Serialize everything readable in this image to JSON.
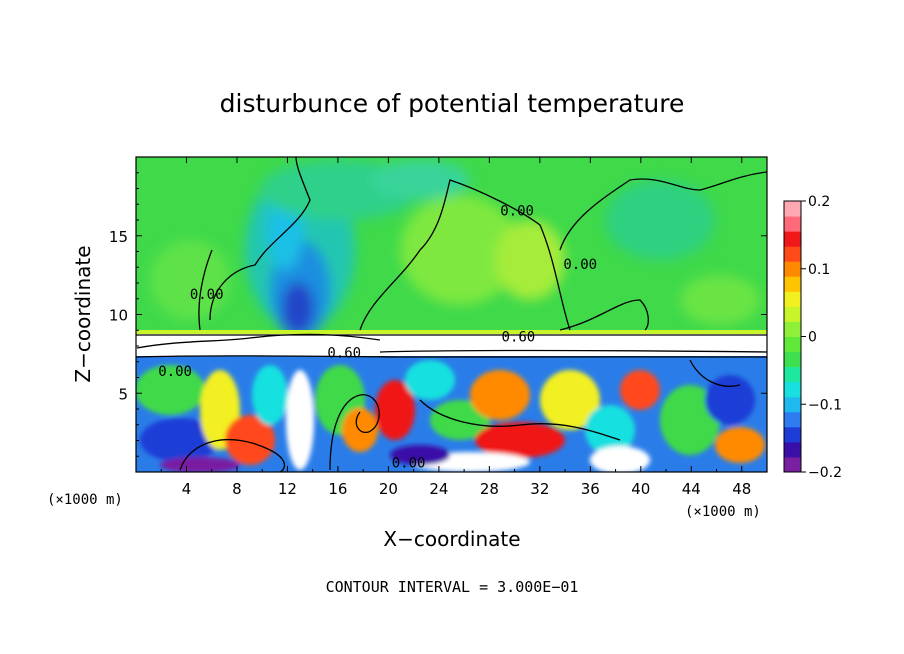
{
  "chart_data": {
    "type": "heatmap",
    "title": "disturbunce of potential temperature",
    "xlabel": "X−coordinate",
    "ylabel": "Z−coordinate",
    "x_unit": "(×1000 m)",
    "x_unit_right": "(×1000 m)",
    "xlim": [
      0,
      50
    ],
    "ylim": [
      0,
      20
    ],
    "xticks": [
      "4",
      "8",
      "12",
      "16",
      "20",
      "24",
      "28",
      "32",
      "36",
      "40",
      "44",
      "48"
    ],
    "xtick_values": [
      4,
      8,
      12,
      16,
      20,
      24,
      28,
      32,
      36,
      40,
      44,
      48
    ],
    "yticks": [
      "5",
      "10",
      "15"
    ],
    "ytick_values": [
      5,
      10,
      15
    ],
    "colorbar": {
      "ticks": [
        "0.2",
        "0.1",
        "0",
        "−0.1",
        "−0.2"
      ],
      "tick_values": [
        0.2,
        0.1,
        0,
        -0.1,
        -0.2
      ],
      "range": [
        -0.2,
        0.2
      ],
      "colors": [
        "#7a1fa2",
        "#3a0fa8",
        "#1e3cd6",
        "#2f7cf0",
        "#1fb8ef",
        "#19e0e0",
        "#1ee8a0",
        "#3fe050",
        "#60e83a",
        "#8ff03a",
        "#c8f52a",
        "#f2f020",
        "#ffc400",
        "#ff8a00",
        "#ff4a1a",
        "#f01818",
        "#ff6a7a",
        "#ffa8b4"
      ]
    },
    "contour_labels": [
      {
        "text": "0.00",
        "x": 30.2,
        "z": 16.6
      },
      {
        "text": "0.00",
        "x": 35.2,
        "z": 13.2
      },
      {
        "text": "0.00",
        "x": 5.6,
        "z": 11.3
      },
      {
        "text": "0.00",
        "x": 3.1,
        "z": 6.4
      },
      {
        "text": "0.60",
        "x": 30.3,
        "z": 8.6
      },
      {
        "text": "0.60",
        "x": 16.5,
        "z": 7.6
      },
      {
        "text": "0.00",
        "x": 21.6,
        "z": 0.6
      }
    ],
    "contour_interval_text": "CONTOUR INTERVAL = 3.000E−01"
  }
}
